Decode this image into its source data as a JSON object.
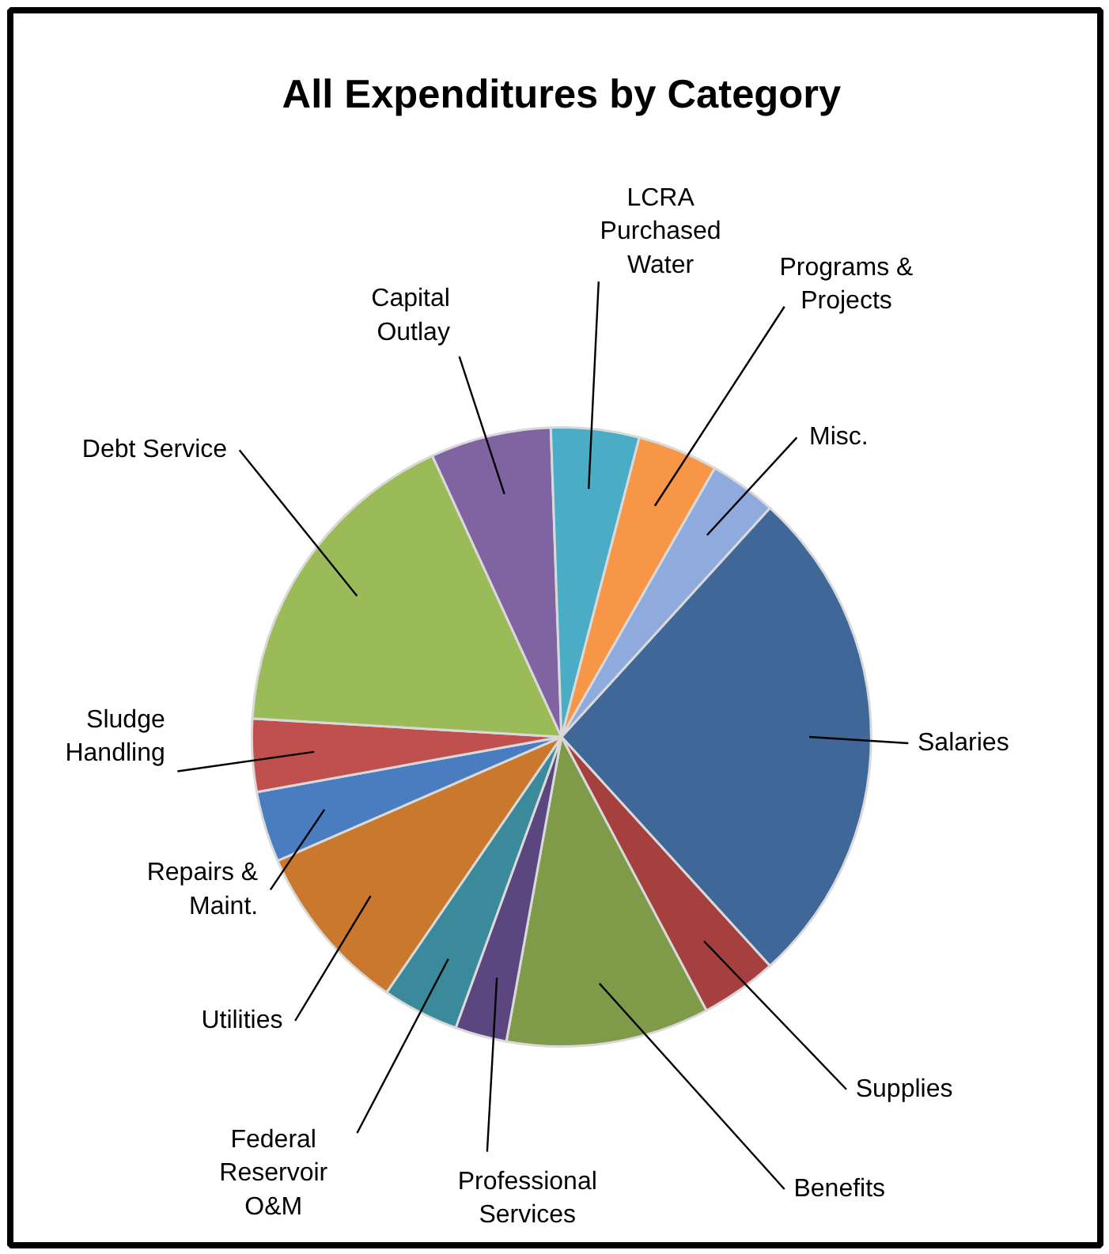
{
  "chart_data": {
    "type": "pie",
    "title": "All Expenditures by Category",
    "categories": [
      "Salaries",
      "Supplies",
      "Benefits",
      "Professional Services",
      "Federal Reservoir O&M",
      "Utilities",
      "Repairs & Maint.",
      "Sludge Handling",
      "Debt Service",
      "Capital Outlay",
      "LCRA Purchased Water",
      "Programs & Projects",
      "Misc."
    ],
    "values": [
      26.5,
      4,
      10.6,
      2.7,
      4,
      8.9,
      3.7,
      3.8,
      17.2,
      6.3,
      4.6,
      4.2,
      3.5
    ],
    "colors": [
      "#3f6899",
      "#a5403e",
      "#7f9a48",
      "#5b4680",
      "#3a8a9c",
      "#c9782e",
      "#4a7dbf",
      "#c0504d",
      "#9bbb59",
      "#8064a2",
      "#4bacc6",
      "#f79646",
      "#8faadc"
    ]
  }
}
